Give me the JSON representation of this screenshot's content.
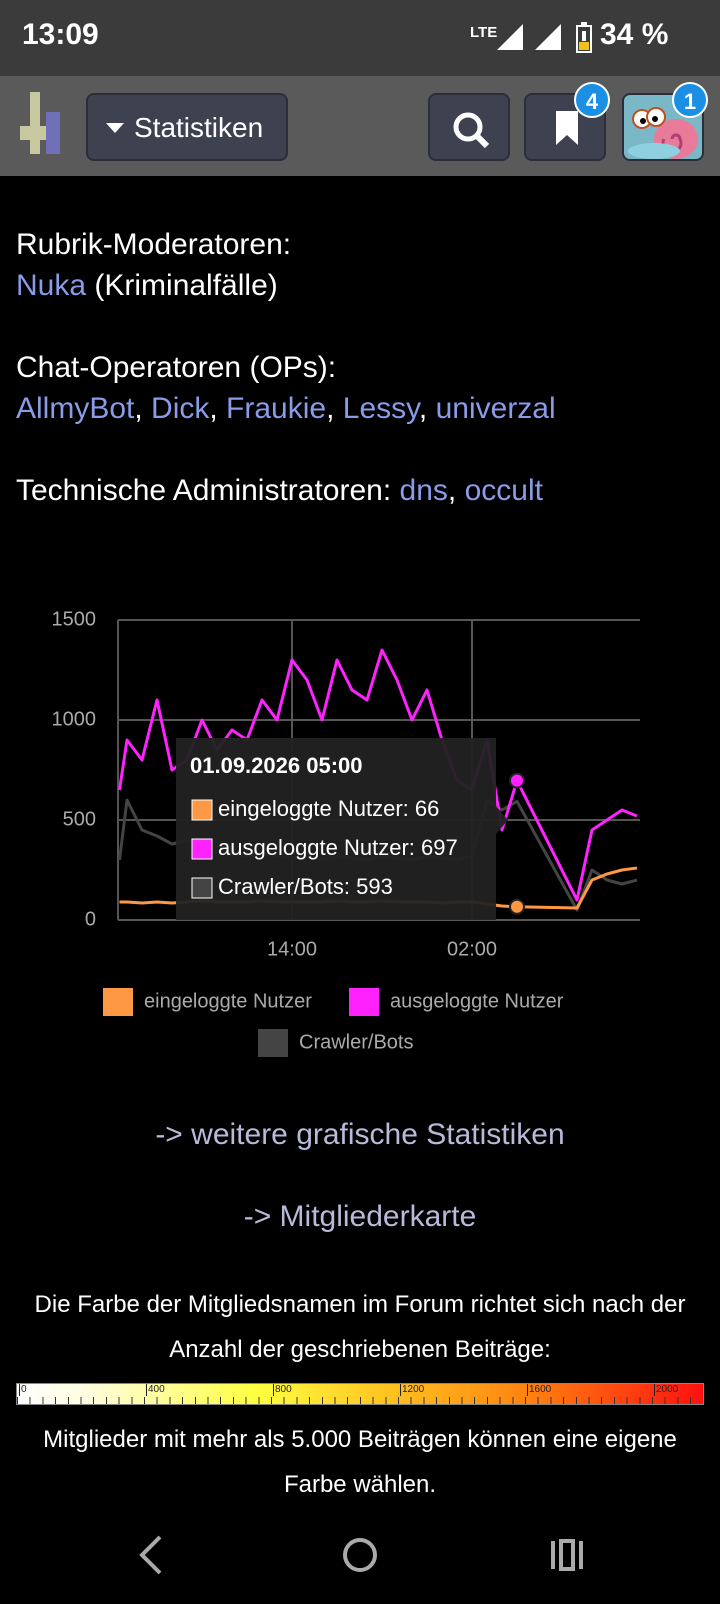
{
  "status_bar": {
    "time": "13:09",
    "network": "LTE",
    "battery": "34 %"
  },
  "toolbar": {
    "menu": "Statistiken",
    "bookmarks_badge": "4",
    "profile_badge": "1"
  },
  "sections": [
    {
      "lines": [
        [
          {
            "text": "Rubrik-Moderatoren:"
          }
        ],
        [
          {
            "text": "Nuka",
            "link": true
          },
          {
            "text": " (Kriminalfälle)"
          }
        ]
      ]
    },
    {
      "lines": [
        [
          {
            "text": "Chat-Operatoren (OPs):"
          }
        ],
        [
          {
            "text": "AllmyBot",
            "link": true
          },
          {
            "text": ", "
          },
          {
            "text": "Dick",
            "link": true
          },
          {
            "text": ", "
          },
          {
            "text": "Fraukie",
            "link": true
          },
          {
            "text": ", "
          },
          {
            "text": "Lessy",
            "link": true
          },
          {
            "text": ", "
          },
          {
            "text": "univerzal",
            "link": true
          }
        ]
      ]
    },
    {
      "lines": [
        [
          {
            "text": "Technische Administratoren: "
          },
          {
            "text": "dns",
            "link": true
          },
          {
            "text": ", "
          },
          {
            "text": "occult",
            "link": true
          }
        ]
      ]
    }
  ],
  "chart_data": {
    "type": "line",
    "x": [
      2.5,
      3,
      4,
      5,
      6,
      7,
      8,
      9,
      10,
      11,
      12,
      13,
      14,
      15,
      16,
      17,
      18,
      19,
      20,
      21,
      22,
      23,
      24,
      25,
      26,
      27,
      28,
      29,
      33,
      34,
      35,
      36,
      37
    ],
    "xlim": [
      2.4,
      37.2
    ],
    "xticks": [
      {
        "value": 14,
        "label": "14:00"
      },
      {
        "value": 26,
        "label": "02:00"
      }
    ],
    "ylim": [
      0,
      1500
    ],
    "yticks": [
      0,
      500,
      1000,
      1500
    ],
    "grid": true,
    "series": [
      {
        "name": "eingeloggte Nutzer",
        "color": "#ff9844",
        "values": [
          90,
          90,
          85,
          90,
          85,
          90,
          95,
          90,
          90,
          90,
          95,
          90,
          90,
          90,
          90,
          95,
          90,
          90,
          95,
          90,
          90,
          90,
          85,
          90,
          90,
          80,
          70,
          66,
          60,
          200,
          230,
          250,
          260
        ]
      },
      {
        "name": "ausgeloggte Nutzer",
        "color": "#ff22ff",
        "values": [
          650,
          900,
          800,
          1100,
          750,
          800,
          1000,
          850,
          950,
          900,
          1100,
          1000,
          1300,
          1200,
          1000,
          1300,
          1150,
          1100,
          1350,
          1200,
          1000,
          1150,
          900,
          700,
          650,
          900,
          450,
          697,
          100,
          450,
          500,
          550,
          520
        ]
      },
      {
        "name": "Crawler/Bots",
        "color": "#444444",
        "values": [
          300,
          600,
          450,
          420,
          380,
          400,
          350,
          340,
          330,
          320,
          330,
          320,
          310,
          320,
          300,
          320,
          310,
          300,
          320,
          310,
          300,
          320,
          310,
          300,
          320,
          600,
          550,
          593,
          50,
          250,
          200,
          180,
          200
        ]
      }
    ],
    "tooltip": {
      "index": 27,
      "title": "01.09.2026 05:00",
      "items": [
        "eingeloggte Nutzer: 66",
        "ausgeloggte Nutzer: 697",
        "Crawler/Bots: 593"
      ]
    }
  },
  "links": [
    "-> weitere grafische Statistiken",
    "-> Mitgliederkarte"
  ],
  "color_note": "Die Farbe der Mitgliedsnamen im Forum richtet sich nach der Anzahl der geschriebenen Beiträge:",
  "color_scale": [
    0,
    400,
    800,
    1200,
    1600,
    2000
  ],
  "custom_color_note": "Mitglieder mit mehr als 5.000 Beiträgen können eine eigene Farbe wählen."
}
